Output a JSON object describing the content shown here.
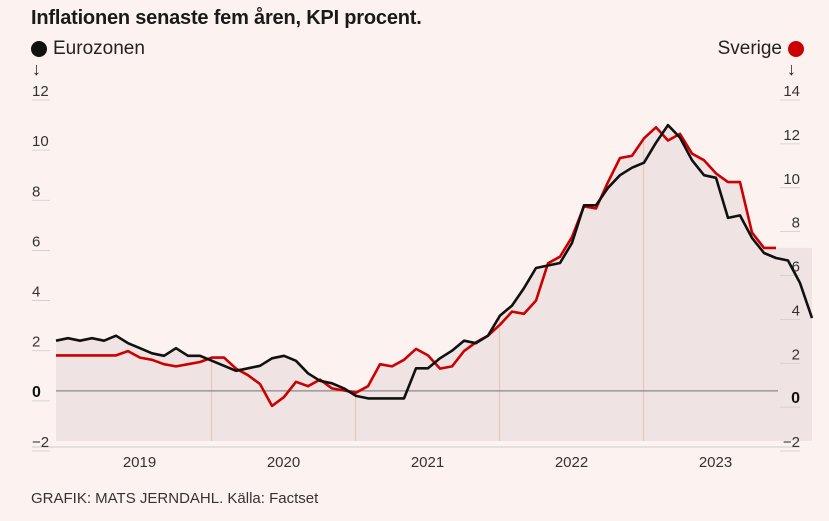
{
  "title": "Inflationen senaste fem åren, KPI procent.",
  "credit": "GRAFIK: MATS JERNDAHL. Källa: Factset",
  "legend": {
    "left": {
      "label": "Eurozonen",
      "arrow": "↓"
    },
    "right": {
      "label": "Sverige",
      "arrow": "↓"
    }
  },
  "colors": {
    "eurozone": "#111111",
    "sweden": "#cc0000",
    "fill": "#e4d7d9",
    "background": "#fcf3f0",
    "zero_line": "#888888",
    "year_line": "#e8c8b8"
  },
  "chart_data": {
    "type": "line",
    "title": "Inflationen senaste fem åren, KPI procent.",
    "x_start": 2018.42,
    "x_step_months": 1,
    "x_ticks": [
      "2019",
      "2020",
      "2021",
      "2022",
      "2023"
    ],
    "left_axis": {
      "label": "Eurozonen",
      "ylim": [
        -2,
        12
      ],
      "ticks": [
        "−2",
        "0",
        "2",
        "4",
        "6",
        "8",
        "10",
        "12"
      ]
    },
    "right_axis": {
      "label": "Sverige",
      "ylim": [
        -2,
        14
      ],
      "ticks": [
        "−2",
        "0",
        "2",
        "4",
        "6",
        "8",
        "10",
        "12",
        "14"
      ]
    },
    "series": [
      {
        "name": "Eurozonen",
        "axis": "left",
        "values": [
          2.0,
          2.1,
          2.0,
          2.1,
          2.0,
          2.2,
          1.9,
          1.7,
          1.5,
          1.4,
          1.7,
          1.4,
          1.4,
          1.2,
          1.0,
          0.8,
          0.9,
          1.0,
          1.3,
          1.4,
          1.2,
          0.7,
          0.4,
          0.3,
          0.1,
          -0.2,
          -0.3,
          -0.3,
          -0.3,
          -0.3,
          0.9,
          0.9,
          1.3,
          1.6,
          2.0,
          1.9,
          2.2,
          3.0,
          3.4,
          4.1,
          4.9,
          5.0,
          5.1,
          5.9,
          7.4,
          7.4,
          8.1,
          8.6,
          8.9,
          9.1,
          9.9,
          10.6,
          10.1,
          9.2,
          8.6,
          8.5,
          6.9,
          7.0,
          6.1,
          5.5,
          5.3,
          5.2,
          4.3,
          2.9
        ]
      },
      {
        "name": "Sverige",
        "axis": "right",
        "values": [
          1.9,
          1.9,
          1.9,
          1.9,
          1.9,
          1.9,
          2.1,
          1.8,
          1.7,
          1.5,
          1.4,
          1.5,
          1.6,
          1.8,
          1.8,
          1.3,
          1.0,
          0.6,
          -0.4,
          0.0,
          0.7,
          0.5,
          0.8,
          0.4,
          0.3,
          0.2,
          0.5,
          1.5,
          1.4,
          1.7,
          2.2,
          1.9,
          1.3,
          1.4,
          2.1,
          2.5,
          2.8,
          3.3,
          3.9,
          3.8,
          4.4,
          6.1,
          6.4,
          7.3,
          8.7,
          8.6,
          9.8,
          10.9,
          11.0,
          11.8,
          12.3,
          11.7,
          12.0,
          11.1,
          10.8,
          10.2,
          9.8,
          9.8,
          7.5,
          6.8,
          6.8
        ]
      }
    ]
  }
}
